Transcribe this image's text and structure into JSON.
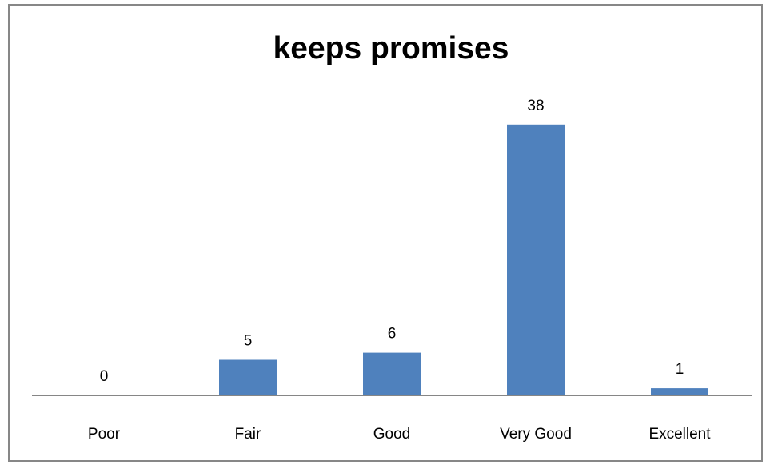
{
  "chart_data": {
    "type": "bar",
    "title": "keeps promises",
    "categories": [
      "Poor",
      "Fair",
      "Good",
      "Very Good",
      "Excellent"
    ],
    "values": [
      0,
      5,
      6,
      38,
      1
    ],
    "xlabel": "",
    "ylabel": "",
    "ylim": [
      0,
      40
    ],
    "grid": false,
    "legend": "none",
    "bar_color": "#4f81bd",
    "axis_color": "#868686"
  }
}
